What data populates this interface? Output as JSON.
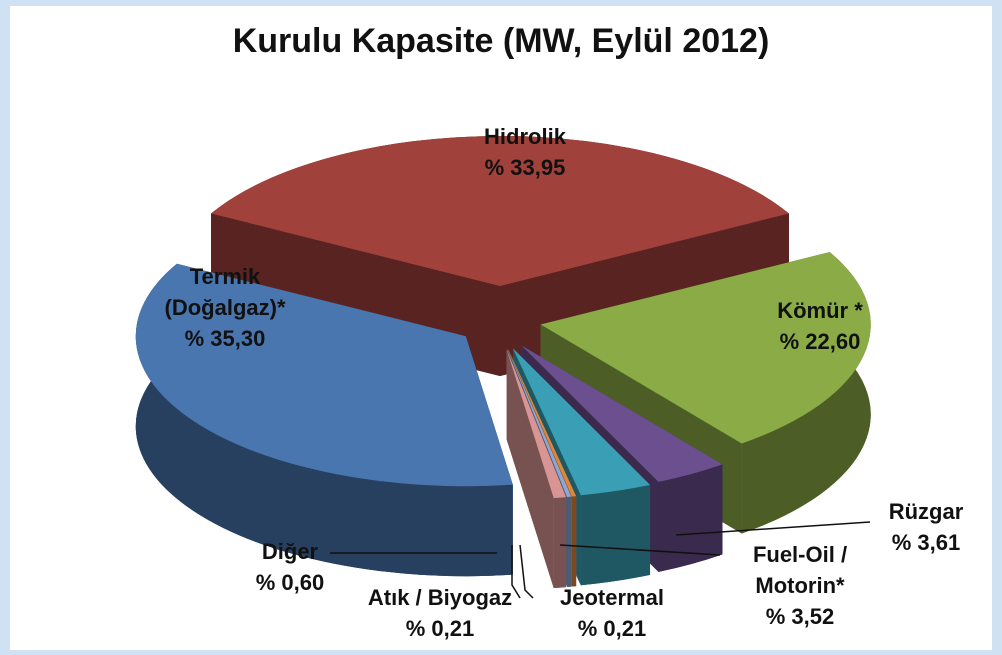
{
  "chart_data": {
    "type": "pie3d",
    "title": "Kurulu Kapasite (MW, Eylül 2012)",
    "categories": [
      "Hidrolik",
      "Kömür *",
      "Rüzgar",
      "Fuel-Oil / Motorin*",
      "Jeotermal",
      "Atık / Biyogaz",
      "Diğer",
      "Termik (Doğalgaz)*"
    ],
    "values": [
      33.95,
      22.6,
      3.61,
      3.52,
      0.21,
      0.21,
      0.6,
      35.3
    ],
    "value_labels": [
      "% 33,95",
      "% 22,60",
      "% 3,61",
      "% 3,52",
      "% 0,21",
      "% 0,21",
      "% 0,60",
      "% 35,30"
    ],
    "colors": [
      "#a0413c",
      "#8aab46",
      "#6b4f8f",
      "#3a9fb4",
      "#e0863a",
      "#8fa7cf",
      "#d99594",
      "#4a76b0"
    ]
  }
}
